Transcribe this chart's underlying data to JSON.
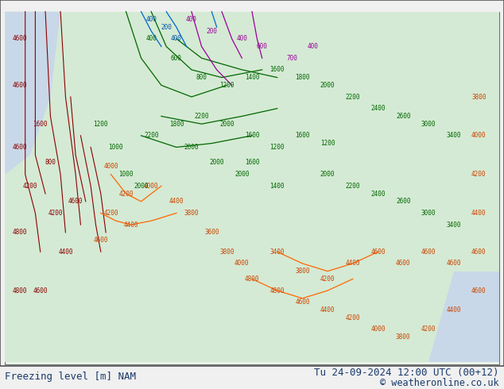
{
  "title": "Freezing level NAM Tu 24.09.2024 12 UTC",
  "bottom_left_text": "Freezing level [m] NAM",
  "bottom_right_text1": "Tu 24-09-2024 12:00 UTC (00+12)",
  "bottom_right_text2": "© weatheronline.co.uk",
  "bg_color": "#f0f0f0",
  "map_bg": "#e8f4e8",
  "border_color": "#333333",
  "text_color": "#1a237e",
  "bottom_text_color": "#1a3a6b",
  "fig_width": 6.34,
  "fig_height": 4.9,
  "dpi": 100
}
